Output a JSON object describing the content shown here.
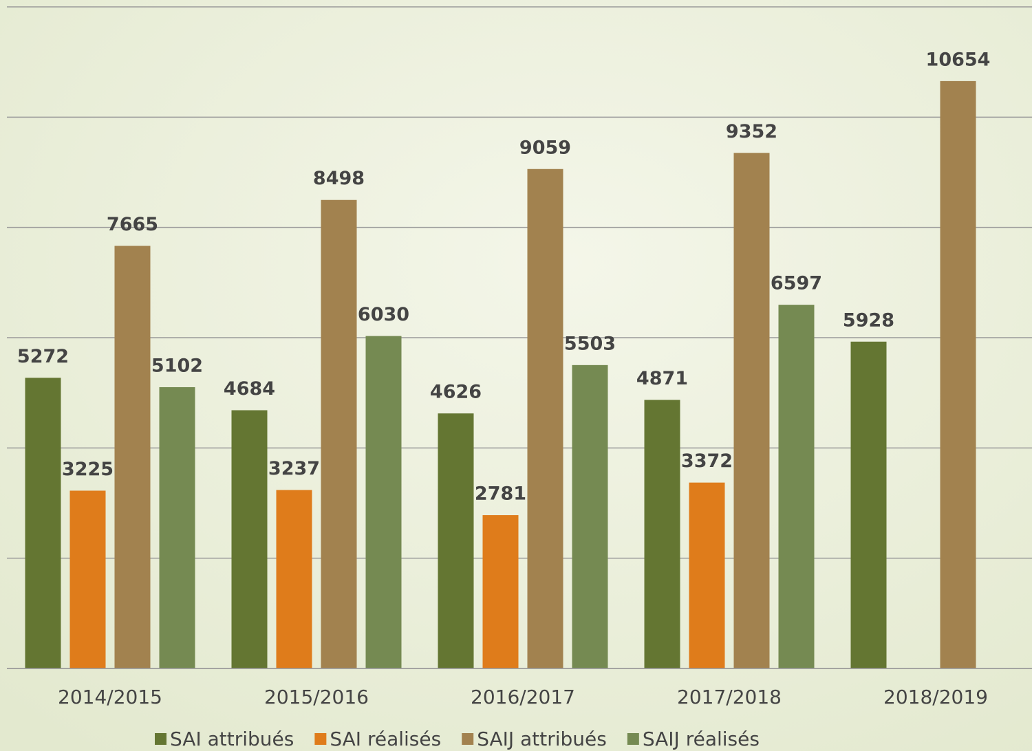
{
  "chart_data": {
    "type": "bar",
    "categories": [
      "2014/2015",
      "2015/2016",
      "2016/2017",
      "2017/2018",
      "2018/2019"
    ],
    "series": [
      {
        "name": "SAI attribués",
        "color": "#647632",
        "values": [
          5272,
          4684,
          4626,
          4871,
          5928
        ]
      },
      {
        "name": "SAI réalisés",
        "color": "#df7c1b",
        "values": [
          3225,
          3237,
          2781,
          3372,
          null
        ]
      },
      {
        "name": "SAIJ attribués",
        "color": "#a2824f",
        "values": [
          7665,
          8498,
          9059,
          9352,
          10654
        ]
      },
      {
        "name": "SAIJ réalisés",
        "color": "#758a52",
        "values": [
          5102,
          6030,
          5503,
          6597,
          null
        ]
      }
    ],
    "ylim": [
      0,
      12000
    ],
    "yticks": [
      0,
      2000,
      4000,
      6000,
      8000,
      10000,
      12000
    ],
    "grid": true
  }
}
